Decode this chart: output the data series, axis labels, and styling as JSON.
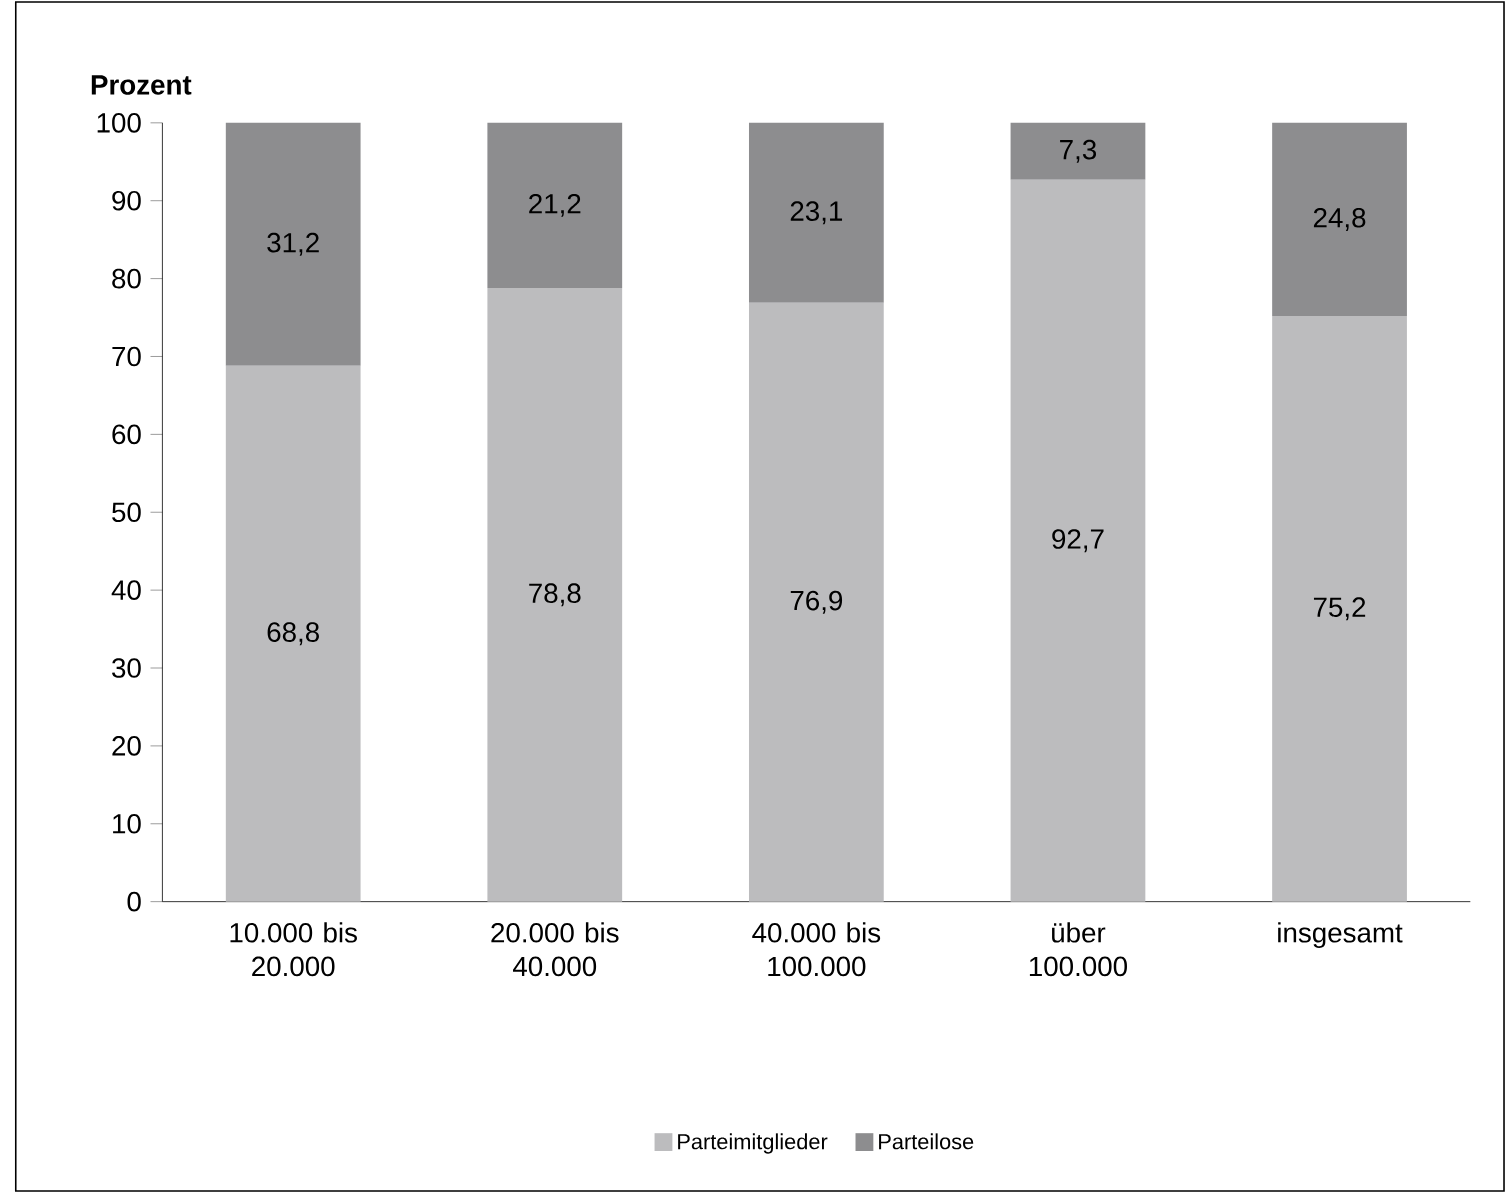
{
  "chart_data": {
    "type": "bar",
    "stacked": true,
    "ylabel": "Prozent",
    "categories": [
      "10.000 bis 20.000",
      "20.000 bis 40.000",
      "40.000 bis 100.000",
      "über 100.000",
      "insgesamt"
    ],
    "series": [
      {
        "name": "Parteimitglieder",
        "color": "#bcbcbe",
        "values": [
          68.8,
          78.8,
          76.9,
          92.7,
          75.2
        ],
        "value_labels": [
          "68,8",
          "78,8",
          "76,9",
          "92,7",
          "75,2"
        ]
      },
      {
        "name": "Parteilose",
        "color": "#8d8d8f",
        "values": [
          31.2,
          21.2,
          23.1,
          7.3,
          24.8
        ],
        "value_labels": [
          "31,2",
          "21,2",
          "23,1",
          "7,3",
          "24,8"
        ]
      }
    ],
    "ylim": [
      0,
      100
    ],
    "yticks": [
      0,
      10,
      20,
      30,
      40,
      50,
      60,
      70,
      80,
      90,
      100
    ],
    "legend": "bottom",
    "grid": false
  }
}
